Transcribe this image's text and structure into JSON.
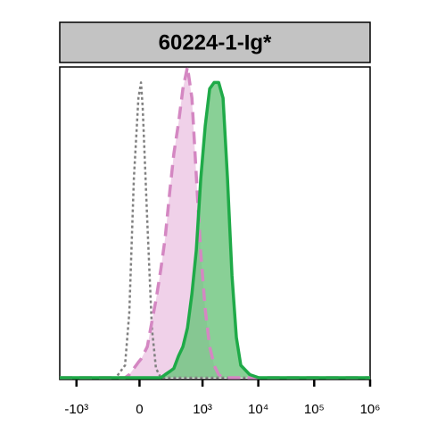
{
  "chart_data": {
    "type": "histogram",
    "title": "60224-1-Ig*",
    "x_scale": "biexponential",
    "x": [
      -2000,
      -170,
      -95,
      -65,
      -35,
      -7,
      9,
      20,
      49,
      80,
      110,
      150,
      190,
      240,
      290,
      360,
      435,
      530,
      640,
      770,
      930,
      1120,
      1345,
      1620,
      1950,
      2340,
      2810,
      3380,
      4050,
      4870,
      7030,
      10200,
      14700,
      1000000
    ],
    "series": [
      {
        "color": "#808080",
        "fill": "none",
        "dash": "dotted",
        "values": [
          0,
          0,
          4,
          21,
          64,
          90,
          95,
          87,
          50,
          16,
          3,
          0,
          0,
          0,
          0,
          0,
          0,
          0,
          0,
          0,
          0,
          0,
          0,
          0,
          0,
          0,
          0,
          0,
          0,
          0,
          0,
          0,
          0,
          0
        ]
      },
      {
        "color": "#d487c2",
        "fill": "#ecc6e3",
        "dash": "dashed",
        "values": [
          0,
          0,
          0,
          1,
          3,
          5,
          6,
          7,
          10,
          18,
          25,
          35,
          45,
          60,
          72,
          82,
          93,
          100,
          90,
          65,
          40,
          22,
          10,
          4,
          1,
          0,
          0,
          0,
          0,
          0,
          0,
          0,
          0,
          0
        ]
      },
      {
        "color": "#1faa48",
        "fill": "#6cc47c",
        "dash": "solid",
        "values": [
          0,
          0,
          0,
          0,
          0,
          0,
          0,
          0,
          0,
          0,
          0,
          0,
          1,
          2,
          3,
          7,
          10,
          16,
          27,
          41,
          64,
          81,
          93,
          95,
          95,
          90,
          64,
          33,
          13,
          4,
          1,
          0,
          0,
          0
        ]
      }
    ],
    "xlim": [
      -2000,
      1000000
    ],
    "ylim": [
      0,
      100
    ],
    "xticks": [
      {
        "value": -1000,
        "label": "-10³"
      },
      0,
      {
        "value": 1000,
        "label": "10³"
      },
      {
        "value": 10000,
        "label": "10⁴"
      },
      {
        "value": 100000,
        "label": "10⁵"
      },
      {
        "value": 1000000,
        "label": "10⁶"
      }
    ]
  }
}
